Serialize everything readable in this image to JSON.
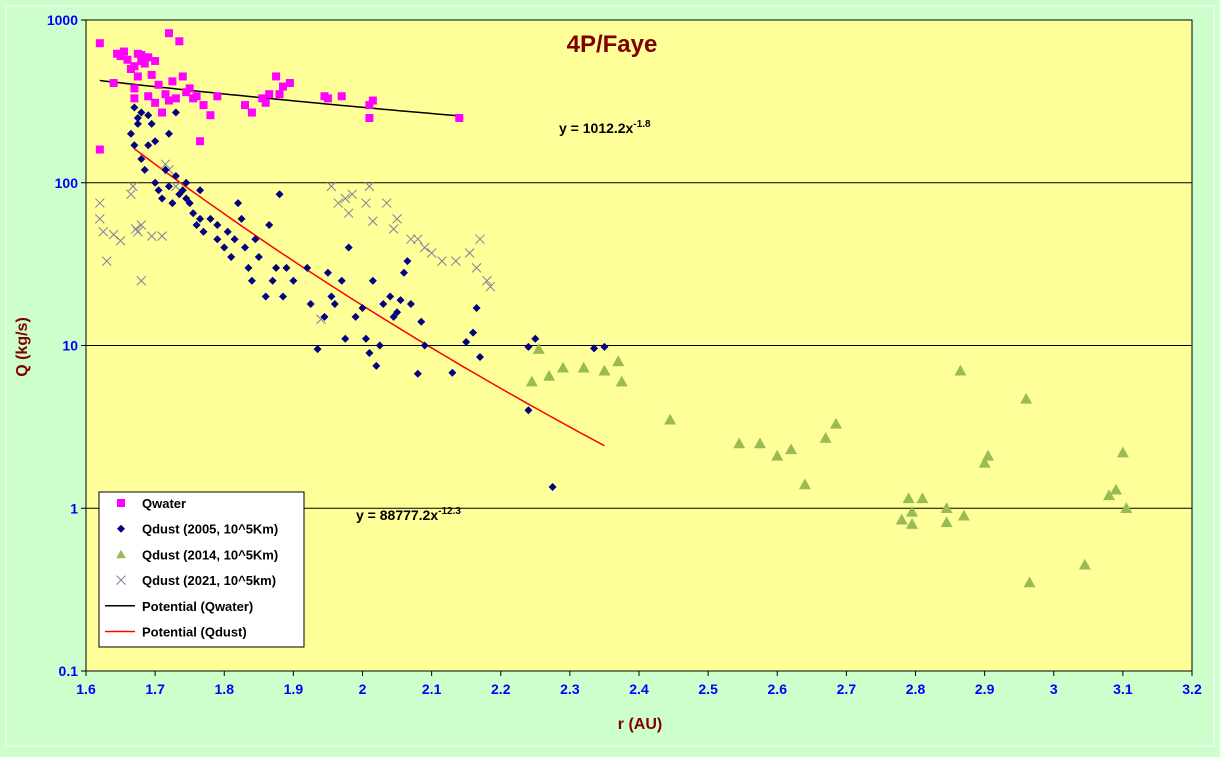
{
  "colors": {
    "page_bg": "#ccffcc",
    "plot_bg": "#ffff99",
    "gridline": "#000000",
    "tick_labels": "#0000ff",
    "titles": "#800000",
    "qwater": "#ff00ff",
    "qdust_2005": "#000080",
    "qdust_2014": "#99bb55",
    "qdust_2021": "#8080a0",
    "fit_water": "#000000",
    "fit_dust": "#ff0000"
  },
  "chart_data": {
    "type": "scatter",
    "title": "4P/Faye",
    "xlabel": "r (AU)",
    "ylabel": "Q (kg/s)",
    "xlim": [
      1.6,
      3.2
    ],
    "ylim": [
      0.1,
      1000
    ],
    "yscale": "log",
    "grid": "horizontal major",
    "legend_position": "bottom-left",
    "x_ticks": [
      "1.6",
      "1.7",
      "1.8",
      "1.9",
      "2",
      "2.1",
      "2.2",
      "2.3",
      "2.4",
      "2.5",
      "2.6",
      "2.7",
      "2.8",
      "2.9",
      "3",
      "3.1",
      "3.2"
    ],
    "y_ticks": [
      "0.1",
      "1",
      "10",
      "100",
      "1000"
    ],
    "series": [
      {
        "name": "Qwater",
        "marker": "square",
        "color": "#ff00ff",
        "x": [
          1.62,
          1.62,
          1.64,
          1.645,
          1.65,
          1.655,
          1.66,
          1.665,
          1.67,
          1.67,
          1.67,
          1.675,
          1.675,
          1.68,
          1.68,
          1.685,
          1.69,
          1.69,
          1.695,
          1.7,
          1.7,
          1.705,
          1.71,
          1.715,
          1.72,
          1.72,
          1.725,
          1.73,
          1.735,
          1.74,
          1.745,
          1.75,
          1.755,
          1.76,
          1.765,
          1.77,
          1.78,
          1.79,
          1.83,
          1.84,
          1.855,
          1.86,
          1.865,
          1.875,
          1.88,
          1.885,
          1.895,
          1.945,
          1.95,
          1.97,
          2.01,
          2.01,
          2.015,
          2.14
        ],
        "y": [
          160,
          720,
          410,
          620,
          600,
          640,
          570,
          500,
          520,
          380,
          330,
          620,
          450,
          610,
          560,
          540,
          590,
          340,
          460,
          560,
          310,
          400,
          270,
          350,
          830,
          320,
          420,
          330,
          740,
          450,
          360,
          380,
          330,
          340,
          180,
          300,
          260,
          340,
          300,
          270,
          330,
          310,
          350,
          450,
          350,
          390,
          410,
          340,
          330,
          340,
          300,
          250,
          320,
          250
        ]
      },
      {
        "name": "Qdust (2005, 10^5Km)",
        "marker": "diamond",
        "color": "#000080",
        "x": [
          1.665,
          1.67,
          1.67,
          1.675,
          1.675,
          1.68,
          1.68,
          1.685,
          1.69,
          1.69,
          1.695,
          1.7,
          1.7,
          1.705,
          1.71,
          1.715,
          1.72,
          1.72,
          1.725,
          1.73,
          1.73,
          1.735,
          1.74,
          1.745,
          1.745,
          1.75,
          1.755,
          1.76,
          1.765,
          1.765,
          1.77,
          1.78,
          1.79,
          1.79,
          1.8,
          1.805,
          1.81,
          1.815,
          1.82,
          1.825,
          1.83,
          1.835,
          1.84,
          1.845,
          1.85,
          1.86,
          1.865,
          1.87,
          1.875,
          1.88,
          1.885,
          1.89,
          1.9,
          1.92,
          1.925,
          1.935,
          1.945,
          1.95,
          1.955,
          1.96,
          1.97,
          1.975,
          1.98,
          1.99,
          2,
          2.005,
          2.01,
          2.015,
          2.02,
          2.025,
          2.03,
          2.04,
          2.045,
          2.05,
          2.055,
          2.06,
          2.065,
          2.07,
          2.08,
          2.085,
          2.09,
          2.13,
          2.15,
          2.16,
          2.165,
          2.17,
          2.24,
          2.24,
          2.25,
          2.275,
          2.335,
          2.35
        ],
        "y": [
          200,
          170,
          290,
          230,
          250,
          270,
          140,
          120,
          260,
          170,
          230,
          180,
          100,
          90,
          80,
          120,
          200,
          95,
          75,
          270,
          110,
          85,
          90,
          80,
          100,
          75,
          65,
          55,
          60,
          90,
          50,
          60,
          55,
          45,
          40,
          50,
          35,
          45,
          75,
          60,
          40,
          30,
          25,
          45,
          35,
          20,
          55,
          25,
          30,
          85,
          20,
          30,
          25,
          30,
          18,
          9.5,
          15,
          28,
          20,
          18,
          25,
          11,
          40,
          15,
          17,
          11,
          9,
          25,
          7.5,
          10,
          18,
          20,
          15,
          16,
          19,
          28,
          33,
          18,
          6.7,
          14,
          10,
          6.8,
          10.5,
          12,
          17,
          8.5,
          9.8,
          4,
          11,
          1.35,
          9.6,
          9.8
        ]
      },
      {
        "name": "Qdust (2014, 10^5Km)",
        "marker": "triangle",
        "color": "#99bb55",
        "x": [
          2.245,
          2.255,
          2.27,
          2.29,
          2.32,
          2.35,
          2.37,
          2.375,
          2.445,
          2.545,
          2.575,
          2.6,
          2.62,
          2.64,
          2.67,
          2.685,
          2.78,
          2.79,
          2.795,
          2.795,
          2.81,
          2.845,
          2.845,
          2.865,
          2.87,
          2.9,
          2.905,
          2.96,
          2.965,
          3.045,
          3.08,
          3.09,
          3.1,
          3.105
        ],
        "y": [
          6,
          9.5,
          6.5,
          7.3,
          7.3,
          7,
          8,
          6,
          3.5,
          2.5,
          2.5,
          2.1,
          2.3,
          1.4,
          2.7,
          3.3,
          0.85,
          1.15,
          0.8,
          0.95,
          1.15,
          1.0,
          0.82,
          7,
          0.9,
          1.9,
          2.1,
          4.7,
          0.35,
          0.45,
          1.2,
          1.3,
          2.2,
          1.0
        ]
      },
      {
        "name": "Qdust (2021, 10^5km)",
        "marker": "x",
        "color": "#8080a0",
        "x": [
          1.62,
          1.62,
          1.625,
          1.63,
          1.64,
          1.65,
          1.665,
          1.668,
          1.672,
          1.675,
          1.68,
          1.68,
          1.695,
          1.71,
          1.715,
          1.72,
          1.73,
          1.94,
          1.955,
          1.965,
          1.975,
          1.98,
          1.985,
          2.005,
          2.01,
          2.015,
          2.035,
          2.045,
          2.05,
          2.07,
          2.08,
          2.09,
          2.1,
          2.115,
          2.135,
          2.155,
          2.165,
          2.17,
          2.18,
          2.185
        ],
        "y": [
          75,
          60,
          50,
          33,
          48,
          44,
          85,
          95,
          52,
          50,
          55,
          25,
          47,
          47,
          130,
          120,
          95,
          14.5,
          95,
          75,
          80,
          65,
          85,
          75,
          95,
          58,
          75,
          52,
          60,
          45,
          45,
          40,
          37,
          33,
          33,
          37,
          30,
          45,
          25,
          23
        ]
      },
      {
        "name": "Potential (Qwater)",
        "marker": "line",
        "color": "#000000",
        "coef": 1012.2,
        "exponent": -1.8,
        "x_range": [
          1.62,
          2.14
        ]
      },
      {
        "name": "Potential (Qdust)",
        "marker": "line",
        "color": "#ff0000",
        "coef": 88777.2,
        "exponent": -12.3,
        "x_range": [
          1.67,
          2.35
        ]
      }
    ],
    "annotations": [
      {
        "prefix": "y = 1012.2x",
        "sup": "-1.8"
      },
      {
        "prefix": "y = 88777.2x",
        "sup": "-12.3"
      }
    ]
  }
}
